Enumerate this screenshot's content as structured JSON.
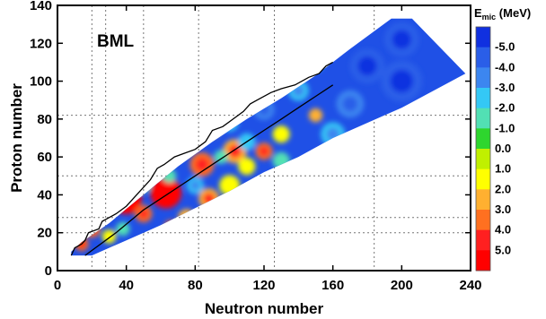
{
  "chart_data": {
    "type": "heatmap",
    "annotation": "BML",
    "xlabel": "Neutron number",
    "ylabel": "Proton number",
    "xlim": [
      0,
      240
    ],
    "ylim": [
      0,
      140
    ],
    "x_ticks": [
      "0",
      "40",
      "80",
      "120",
      "160",
      "200",
      "240"
    ],
    "y_ticks": [
      "0",
      "20",
      "40",
      "60",
      "80",
      "100",
      "120",
      "140"
    ],
    "x_tick_values": [
      0,
      40,
      80,
      120,
      160,
      200,
      240
    ],
    "y_tick_values": [
      0,
      20,
      40,
      60,
      80,
      100,
      120,
      140
    ],
    "grid_x": [
      20,
      28,
      50,
      82,
      126,
      184
    ],
    "grid_y": [
      20,
      28,
      50,
      82
    ],
    "colorbar": {
      "title_main": "E",
      "title_sub": "mic",
      "title_unit": " (MeV)",
      "labels": [
        "-5.0",
        "-4.0",
        "-3.0",
        "-2.0",
        "-1.0",
        "0.0",
        "1.0",
        "2.0",
        "3.0",
        "4.0",
        "5.0"
      ],
      "colors": [
        "#1030e0",
        "#2a5ee8",
        "#3c86f0",
        "#34c8f5",
        "#52e0b4",
        "#2ed62e",
        "#c0f000",
        "#ffff00",
        "#ffb030",
        "#ff7020",
        "#ff2020",
        "#ff0000"
      ]
    },
    "region_boundary": [
      [
        8,
        8
      ],
      [
        20,
        8
      ],
      [
        40,
        16
      ],
      [
        60,
        24
      ],
      [
        80,
        33
      ],
      [
        100,
        42
      ],
      [
        120,
        52
      ],
      [
        140,
        60
      ],
      [
        160,
        70
      ],
      [
        200,
        86
      ],
      [
        237,
        104
      ],
      [
        206,
        133
      ],
      [
        194,
        133
      ],
      [
        170,
        117
      ],
      [
        150,
        103
      ],
      [
        130,
        91
      ],
      [
        110,
        80
      ],
      [
        90,
        68
      ],
      [
        70,
        55
      ],
      [
        50,
        40
      ],
      [
        30,
        25
      ],
      [
        14,
        15
      ],
      [
        8,
        10
      ]
    ],
    "hotspots": [
      {
        "x": 40,
        "y": 38,
        "value": 5.0,
        "r": 9
      },
      {
        "x": 63,
        "y": 41,
        "value": 5.0,
        "r": 9
      },
      {
        "x": 30,
        "y": 35,
        "value": 3.5,
        "r": 6
      },
      {
        "x": 20,
        "y": 22,
        "value": 3.0,
        "r": 5
      },
      {
        "x": 14,
        "y": 14,
        "value": 3.5,
        "r": 4
      },
      {
        "x": 50,
        "y": 30,
        "value": 3.0,
        "r": 5
      },
      {
        "x": 88,
        "y": 38,
        "value": 2.5,
        "r": 6
      },
      {
        "x": 84,
        "y": 56,
        "value": 3.0,
        "r": 7
      },
      {
        "x": 103,
        "y": 63,
        "value": 2.5,
        "r": 7
      },
      {
        "x": 120,
        "y": 63,
        "value": 3.0,
        "r": 5
      },
      {
        "x": 90,
        "y": 75,
        "value": 2.0,
        "r": 5
      },
      {
        "x": 150,
        "y": 82,
        "value": 2.0,
        "r": 4
      },
      {
        "x": 72,
        "y": 65,
        "value": 2.0,
        "r": 5
      },
      {
        "x": 100,
        "y": 45,
        "value": 1.5,
        "r": 6
      },
      {
        "x": 56,
        "y": 54,
        "value": 1.0,
        "r": 5
      },
      {
        "x": 130,
        "y": 72,
        "value": 1.0,
        "r": 5
      },
      {
        "x": 30,
        "y": 18,
        "value": 1.5,
        "r": 4
      },
      {
        "x": 66,
        "y": 23,
        "value": 3.5,
        "r": 4
      },
      {
        "x": 75,
        "y": 28,
        "value": 2.0,
        "r": 5
      },
      {
        "x": 110,
        "y": 55,
        "value": 1.5,
        "r": 5
      },
      {
        "x": 140,
        "y": 95,
        "value": -2.5,
        "r": 6
      },
      {
        "x": 170,
        "y": 88,
        "value": -3.5,
        "r": 8
      },
      {
        "x": 200,
        "y": 100,
        "value": -4.5,
        "r": 12
      },
      {
        "x": 200,
        "y": 122,
        "value": -4.0,
        "r": 10
      },
      {
        "x": 180,
        "y": 108,
        "value": -4.0,
        "r": 10
      },
      {
        "x": 120,
        "y": 85,
        "value": -3.0,
        "r": 6
      },
      {
        "x": 100,
        "y": 78,
        "value": -2.0,
        "r": 5
      },
      {
        "x": 110,
        "y": 68,
        "value": -2.0,
        "r": 5
      },
      {
        "x": 80,
        "y": 45,
        "value": -2.5,
        "r": 5
      },
      {
        "x": 50,
        "y": 45,
        "value": -1.5,
        "r": 4
      },
      {
        "x": 130,
        "y": 58,
        "value": -1.5,
        "r": 5
      },
      {
        "x": 160,
        "y": 72,
        "value": -2.5,
        "r": 7
      },
      {
        "x": 150,
        "y": 110,
        "value": -2.5,
        "r": 5
      },
      {
        "x": 95,
        "y": 60,
        "value": -1.0,
        "r": 4
      },
      {
        "x": 65,
        "y": 50,
        "value": -1.0,
        "r": 4
      },
      {
        "x": 38,
        "y": 22,
        "value": -1.0,
        "r": 4
      }
    ],
    "drip_line": [
      [
        8,
        8
      ],
      [
        10,
        12
      ],
      [
        14,
        14
      ],
      [
        16,
        16
      ],
      [
        18,
        20
      ],
      [
        24,
        22
      ],
      [
        26,
        26
      ],
      [
        30,
        28
      ],
      [
        34,
        30
      ],
      [
        40,
        34
      ],
      [
        44,
        38
      ],
      [
        48,
        42
      ],
      [
        54,
        48
      ],
      [
        58,
        54
      ],
      [
        62,
        56
      ],
      [
        68,
        60
      ],
      [
        74,
        62
      ],
      [
        80,
        64
      ],
      [
        86,
        68
      ],
      [
        90,
        74
      ],
      [
        96,
        76
      ],
      [
        102,
        80
      ],
      [
        108,
        84
      ],
      [
        112,
        88
      ],
      [
        116,
        90
      ],
      [
        124,
        94
      ],
      [
        130,
        96
      ],
      [
        138,
        98
      ],
      [
        146,
        102
      ],
      [
        152,
        104
      ],
      [
        156,
        108
      ],
      [
        160,
        110
      ]
    ],
    "stability_line": [
      [
        16,
        8
      ],
      [
        22,
        12
      ],
      [
        28,
        16
      ],
      [
        34,
        20
      ],
      [
        42,
        26
      ],
      [
        50,
        32
      ],
      [
        60,
        38
      ],
      [
        70,
        44
      ],
      [
        80,
        50
      ],
      [
        90,
        56
      ],
      [
        100,
        62
      ],
      [
        110,
        68
      ],
      [
        120,
        74
      ],
      [
        130,
        80
      ],
      [
        140,
        86
      ],
      [
        150,
        92
      ],
      [
        160,
        98
      ]
    ]
  }
}
